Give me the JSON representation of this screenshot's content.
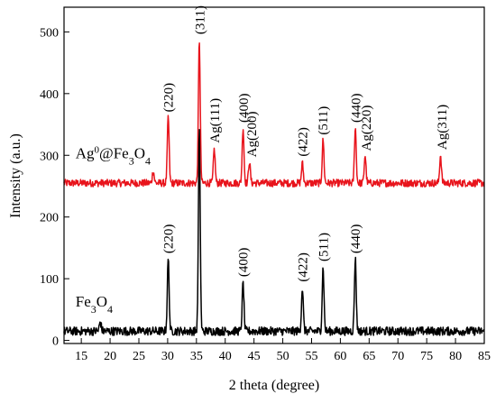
{
  "chart_data": {
    "type": "line",
    "xlabel": "2 theta (degree)",
    "ylabel": "Intensity (a.u.)",
    "xlim": [
      12,
      85
    ],
    "ylim": [
      -5,
      540
    ],
    "xticks": [
      15,
      20,
      25,
      30,
      35,
      40,
      45,
      50,
      55,
      60,
      65,
      70,
      75,
      80,
      85
    ],
    "yticks": [
      0,
      100,
      200,
      300,
      400,
      500
    ],
    "grid": false,
    "legend": "none",
    "series": [
      {
        "name": "Ag0@Fe3O4",
        "color": "#e8141c",
        "baseline": 255,
        "noise": 6,
        "peaks": [
          {
            "x": 27.5,
            "y": 275
          },
          {
            "x": 30.1,
            "y": 362
          },
          {
            "x": 35.5,
            "y": 487
          },
          {
            "x": 38.1,
            "y": 310
          },
          {
            "x": 43.1,
            "y": 345
          },
          {
            "x": 44.2,
            "y": 290
          },
          {
            "x": 53.4,
            "y": 287
          },
          {
            "x": 57.0,
            "y": 325
          },
          {
            "x": 62.6,
            "y": 345
          },
          {
            "x": 64.3,
            "y": 300
          },
          {
            "x": 77.4,
            "y": 300
          }
        ]
      },
      {
        "name": "Fe3O4",
        "color": "#000000",
        "baseline": 15,
        "noise": 7,
        "peaks": [
          {
            "x": 18.3,
            "y": 30
          },
          {
            "x": 30.1,
            "y": 132
          },
          {
            "x": 35.5,
            "y": 338
          },
          {
            "x": 43.1,
            "y": 93
          },
          {
            "x": 53.4,
            "y": 85
          },
          {
            "x": 57.0,
            "y": 118
          },
          {
            "x": 62.6,
            "y": 133
          }
        ]
      }
    ],
    "annotations": [
      {
        "text": "(220)",
        "x": 30.1,
        "y": 370,
        "rotate": true
      },
      {
        "text": "(311)",
        "x": 35.6,
        "y": 496,
        "rotate": true
      },
      {
        "text": "Ag(111)",
        "x": 38.2,
        "y": 320,
        "rotate": true
      },
      {
        "text": "(400)",
        "x": 43.2,
        "y": 353,
        "rotate": true
      },
      {
        "text": "Ag(200)",
        "x": 44.6,
        "y": 297,
        "rotate": true
      },
      {
        "text": "(422)",
        "x": 53.4,
        "y": 298,
        "rotate": true
      },
      {
        "text": "(511)",
        "x": 57.0,
        "y": 333,
        "rotate": true
      },
      {
        "text": "(440)",
        "x": 62.7,
        "y": 353,
        "rotate": true
      },
      {
        "text": "Ag(220)",
        "x": 64.5,
        "y": 307,
        "rotate": true
      },
      {
        "text": "Ag(311)",
        "x": 77.6,
        "y": 309,
        "rotate": true
      },
      {
        "text": "(220)",
        "x": 30.1,
        "y": 141,
        "rotate": true
      },
      {
        "text": "(400)",
        "x": 43.1,
        "y": 103,
        "rotate": true
      },
      {
        "text": "(422)",
        "x": 53.4,
        "y": 95,
        "rotate": true
      },
      {
        "text": "(511)",
        "x": 57.0,
        "y": 128,
        "rotate": true
      },
      {
        "text": "(440)",
        "x": 62.6,
        "y": 141,
        "rotate": true
      }
    ],
    "series_labels": [
      {
        "text": "Ag0@Fe3O4",
        "x": 14,
        "y": 295
      },
      {
        "text": "Fe3O4",
        "x": 14,
        "y": 55
      }
    ]
  }
}
